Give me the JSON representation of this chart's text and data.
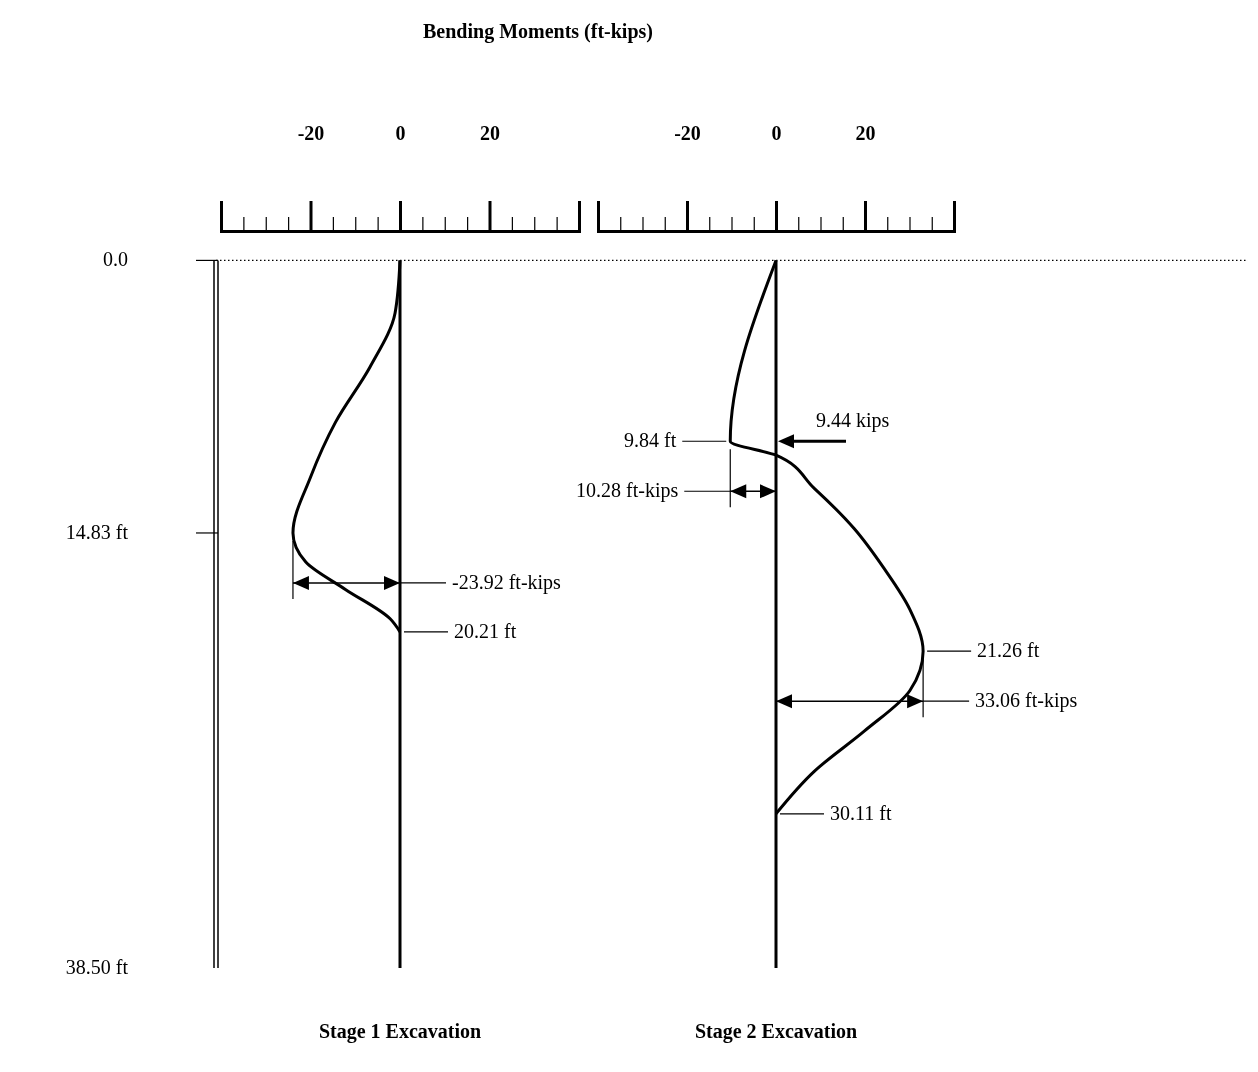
{
  "chart_data": [
    {
      "type": "line",
      "title": "Bending Moments (ft-kips)",
      "xlabel": "Stage 1 Excavation",
      "xlim": [
        -40,
        40
      ],
      "xticks": [
        {
          "value": -35,
          "label": null
        },
        {
          "value": -30,
          "label": null
        },
        {
          "value": -25,
          "label": null
        },
        -20,
        {
          "value": -15,
          "label": null
        },
        {
          "value": -10,
          "label": null
        },
        {
          "value": -5,
          "label": null
        },
        0,
        {
          "value": 5,
          "label": null
        },
        {
          "value": 10,
          "label": null
        },
        {
          "value": 15,
          "label": null
        },
        20,
        {
          "value": 25,
          "label": null
        },
        {
          "value": 30,
          "label": null
        },
        {
          "value": 35,
          "label": null
        }
      ],
      "ylim": [
        38.5,
        -1.6
      ],
      "yticks": [
        {
          "value": 0,
          "label": "0.0"
        },
        {
          "value": 14.83,
          "label": "14.83 ft"
        },
        {
          "value": 38.5,
          "label": "38.50 ft"
        }
      ],
      "series": [
        {
          "color": "#000000",
          "x": [
            0,
            -1.1,
            -6.7,
            -14.4,
            -20,
            -23.92,
            -21.1,
            -12.2,
            -2.2,
            0
          ],
          "values": [
            0,
            2.86,
            5.8,
            8.8,
            11.8,
            14.83,
            16.4,
            17.9,
            19.5,
            20.21
          ]
        }
      ],
      "ref_lines": [
        {
          "axis": "y",
          "value": 0,
          "line_style": "dotted"
        },
        {
          "axis": "x",
          "value": 0
        }
      ],
      "annotations": [
        {
          "text": "20.21 ft",
          "x": 0,
          "y": 20.21
        },
        "-23.92 ft-kips"
      ]
    },
    {
      "type": "line",
      "xlabel": "Stage 2 Excavation",
      "xlim": [
        -40,
        40
      ],
      "xticks": [
        {
          "value": -35,
          "label": null
        },
        {
          "value": -30,
          "label": null
        },
        {
          "value": -25,
          "label": null
        },
        -20,
        {
          "value": -15,
          "label": null
        },
        {
          "value": -10,
          "label": null
        },
        {
          "value": -5,
          "label": null
        },
        0,
        {
          "value": 5,
          "label": null
        },
        {
          "value": 10,
          "label": null
        },
        {
          "value": 15,
          "label": null
        },
        20,
        {
          "value": 25,
          "label": null
        },
        {
          "value": 30,
          "label": null
        },
        {
          "value": 35,
          "label": null
        }
      ],
      "ylim": [
        38.5,
        -1.6
      ],
      "tick_labels": "x",
      "series": [
        {
          "color": "#000000",
          "x": [
            0,
            -10.28,
            0,
            8.6,
            17.6,
            24.4,
            30.1,
            33.06,
            30.1,
            19.9,
            8.6,
            0
          ],
          "values": [
            0,
            9.84,
            10.6,
            12.4,
            14.6,
            16.8,
            19.0,
            21.26,
            23.4,
            25.6,
            27.8,
            30.11
          ]
        }
      ],
      "ref_lines": [
        {
          "axis": "x",
          "value": 0
        }
      ],
      "annotations": [
        {
          "text": "9.84 ft",
          "x": -10.28,
          "y": 9.84
        },
        {
          "text": "9.44 kips",
          "x": 0,
          "y": 9.84
        },
        "10.28 ft-kips",
        {
          "text": "21.26 ft",
          "x": 33.06,
          "y": 21.26
        },
        {
          "text": "30.11 ft",
          "x": 0,
          "y": 30.11
        },
        "33.06 ft-kips"
      ]
    }
  ]
}
